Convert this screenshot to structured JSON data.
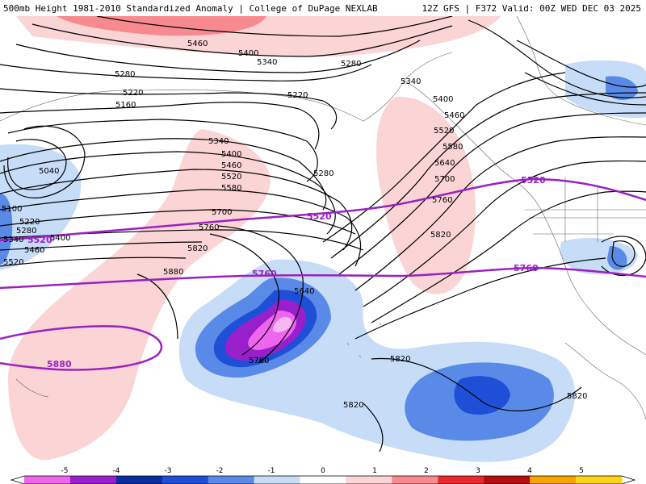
{
  "header": {
    "left_title": "500mb Height 1981-2010 Standardized Anomaly | College of DuPage NEXLAB",
    "right_title": "12Z GFS | F372 Valid: 00Z WED DEC 03 2025"
  },
  "height_labels": {
    "l5460a": "5460",
    "l5400a": "5400",
    "l5340a": "5340",
    "l5280a": "5280",
    "l5280b": "5280",
    "l5220a": "5220",
    "l5160a": "5160",
    "l5220b": "5220",
    "l5040": "5040",
    "l5100": "5100",
    "l5220c": "5220",
    "l5280c": "5280",
    "l5340b": "5340",
    "l5400b": "5400",
    "l5460b": "5460",
    "l5520a": "5520",
    "l5340c": "5340",
    "l5400c": "5400",
    "l5460c": "5460",
    "l5520b": "5520",
    "l5580a": "5580",
    "l5280d": "5280",
    "l5700a": "5700",
    "l5760a": "5760",
    "l5820a": "5820",
    "l5880a": "5880",
    "l5340d": "5340",
    "l5400d": "5400",
    "l5460d": "5460",
    "l5520c": "5520",
    "l5580b": "5580",
    "l5640a": "5640",
    "l5700b": "5700",
    "l5760b": "5760",
    "l5820b": "5820",
    "l5640b": "5640",
    "l5760c": "5760",
    "l5820c": "5820",
    "l5820d": "5820",
    "l5820e": "5820"
  },
  "highlight_labels": {
    "h5520a": "5520",
    "h5520b": "5520",
    "h5520c": "5520",
    "h5760a": "5760",
    "h5760b": "5760",
    "h5880": "5880"
  },
  "colorbar": {
    "ticks": [
      "-5",
      "-4",
      "-3",
      "-2",
      "-1",
      "0",
      "1",
      "2",
      "3",
      "4",
      "5"
    ],
    "colors": [
      "#ee66ee",
      "#9a1fcc",
      "#0a2e9e",
      "#1f4fd6",
      "#5a8ae8",
      "#c6dcf7",
      "#ffffff",
      "#fbd4d6",
      "#f78a8e",
      "#e82a2e",
      "#b30d12",
      "#f6a400",
      "#ffd21a"
    ]
  }
}
